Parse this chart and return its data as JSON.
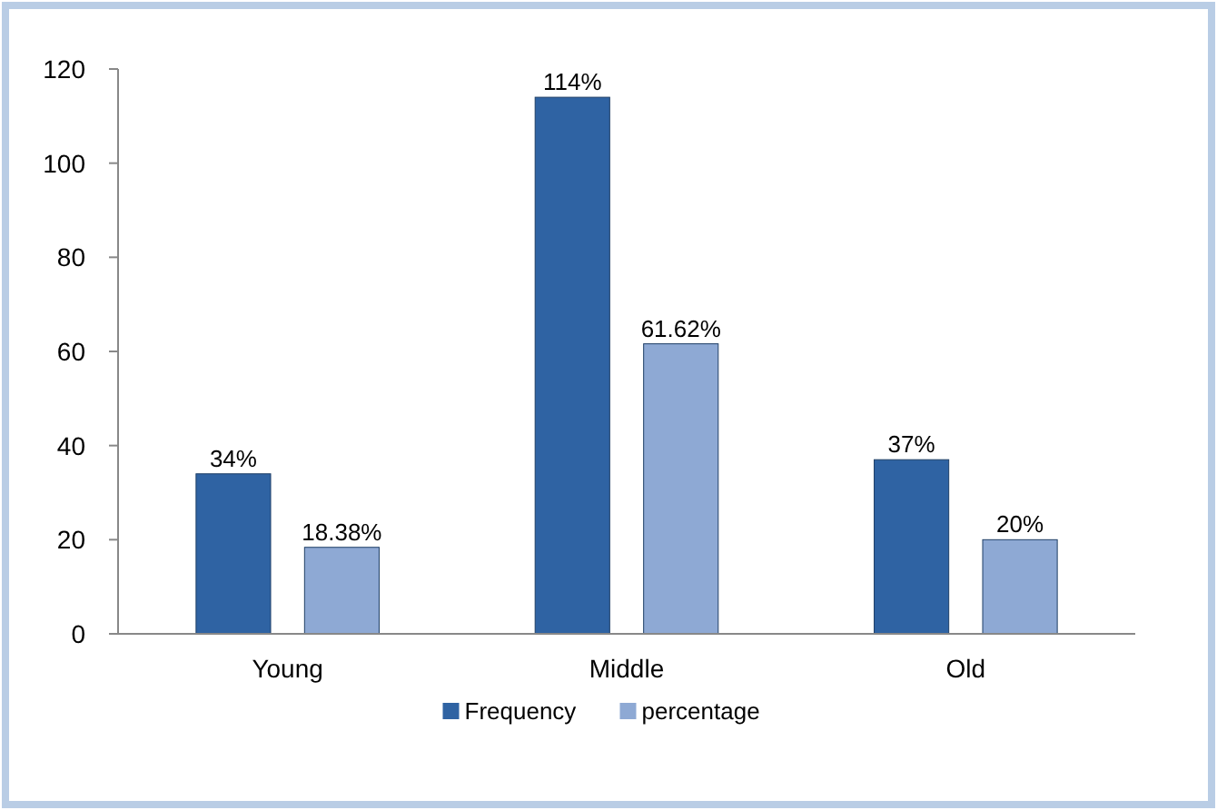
{
  "chart_data": {
    "type": "bar",
    "categories": [
      "Young",
      "Middle",
      "Old"
    ],
    "series": [
      {
        "name": "Frequency",
        "color": "#2f63a3",
        "values": [
          34,
          114,
          37
        ],
        "value_labels": [
          "34%",
          "114%",
          "37%"
        ]
      },
      {
        "name": "percentage",
        "color": "#8ea9d4",
        "values": [
          18.38,
          61.62,
          20
        ],
        "value_labels": [
          "18.38%",
          "61.62%",
          "20%"
        ]
      }
    ],
    "ylim": [
      0,
      120
    ],
    "yticks": [
      0,
      20,
      40,
      60,
      80,
      100,
      120
    ],
    "grid": false,
    "legend": "bottom"
  }
}
